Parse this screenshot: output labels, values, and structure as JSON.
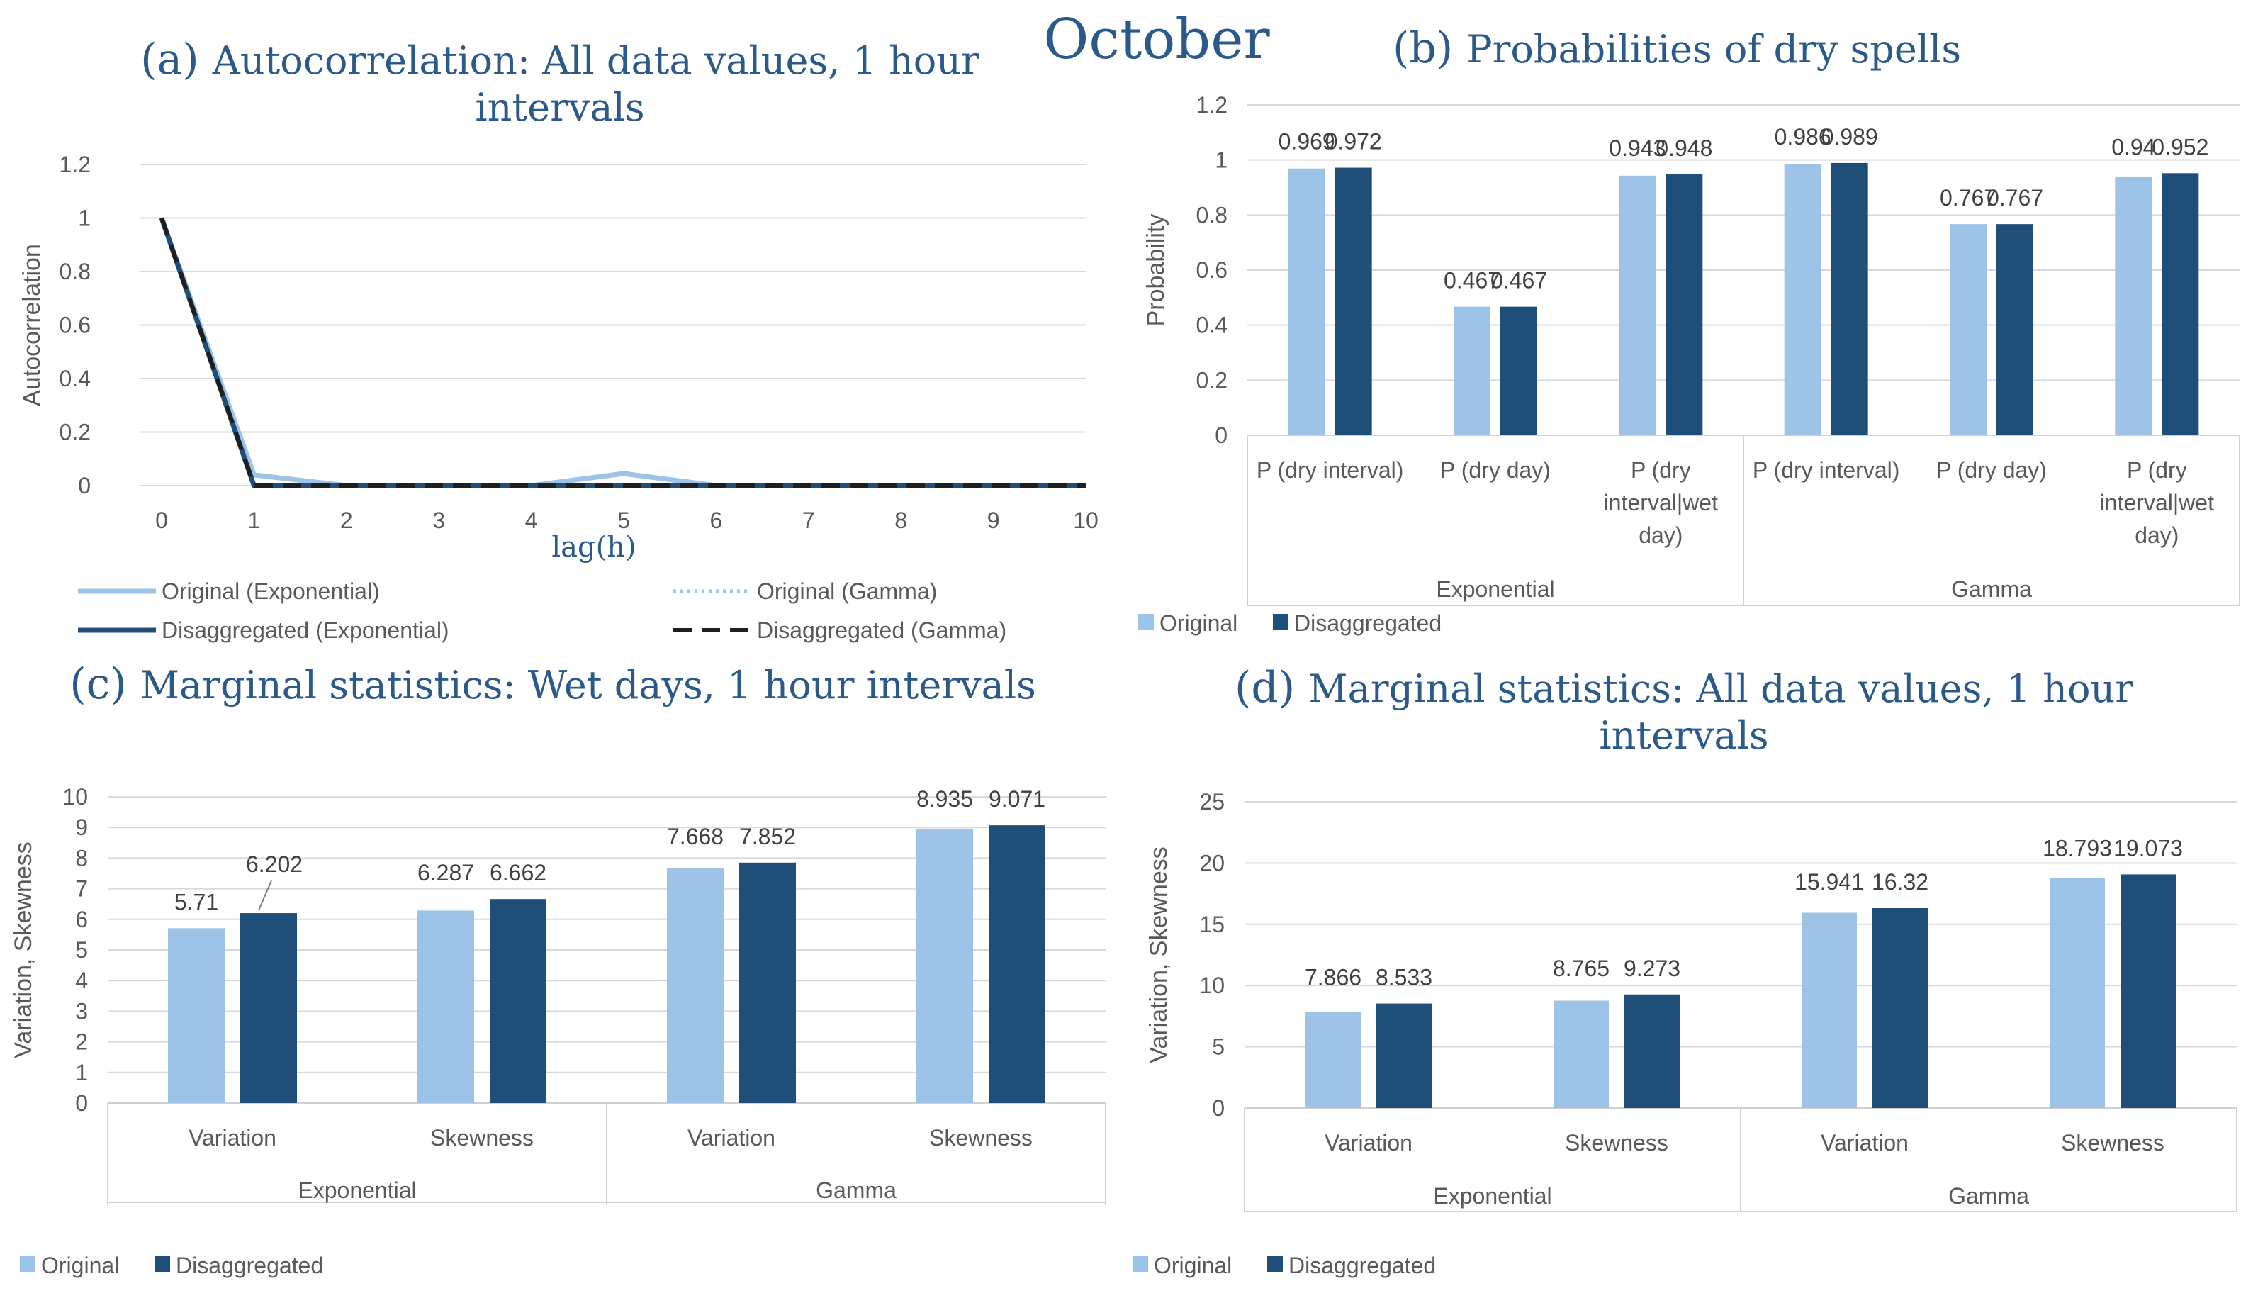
{
  "figure_title": "October",
  "colors": {
    "original": "#9dc3e6",
    "disaggregated": "#1f4e79",
    "title": "#2b5a8a",
    "grid": "#d9d9d9",
    "axis_text": "#595959"
  },
  "chart_data": [
    {
      "id": "a",
      "type": "line",
      "title": "(a) Autocorrelation: All data values, 1 hour intervals",
      "xlabel": "lag(h)",
      "ylabel": "Autocorrelation",
      "x": [
        0,
        1,
        2,
        3,
        4,
        5,
        6,
        7,
        8,
        9,
        10
      ],
      "xticks": [
        "0",
        "1",
        "2",
        "3",
        "4",
        "5",
        "6",
        "7",
        "8",
        "9",
        "10"
      ],
      "ylim": [
        0,
        1.2
      ],
      "yticks": [
        "0",
        "0.2",
        "0.4",
        "0.6",
        "0.8",
        "1",
        "1.2"
      ],
      "grid": true,
      "legend_position": "bottom",
      "series": [
        {
          "name": "Original (Exponential)",
          "style": "solid",
          "color": "#9dc3e6",
          "values": [
            1,
            0.04,
            0.0,
            0.0,
            0.0,
            0.045,
            0.0,
            0.0,
            0.0,
            0.0,
            0.0
          ]
        },
        {
          "name": "Original (Gamma)",
          "style": "dotted",
          "color": "#9dc3e6",
          "values": [
            1,
            0.0,
            0.0,
            0.0,
            0.0,
            0.0,
            0.0,
            0.0,
            0.0,
            0.0,
            0.0
          ]
        },
        {
          "name": "Disaggregated (Exponential)",
          "style": "solid",
          "color": "#1f4e79",
          "values": [
            1,
            0.0,
            0.0,
            0.0,
            0.0,
            0.0,
            0.0,
            0.0,
            0.0,
            0.0,
            0.0
          ]
        },
        {
          "name": "Disaggregated (Gamma)",
          "style": "dashed",
          "color": "#1f1f1f",
          "values": [
            1,
            0.0,
            0.0,
            0.0,
            0.0,
            0.0,
            0.0,
            0.0,
            0.0,
            0.0,
            0.0
          ]
        }
      ]
    },
    {
      "id": "b",
      "type": "bar",
      "title": "(b) Probabilities of dry spells",
      "xlabel": "",
      "ylabel": "Probability",
      "groups": [
        "Exponential",
        "Gamma"
      ],
      "categories": [
        "P (dry interval)",
        "P (dry day)",
        "P (dry interval|wet day)",
        "P (dry interval)",
        "P (dry day)",
        "P (dry interval|wet day)"
      ],
      "category_lines": [
        [
          "P (dry interval)"
        ],
        [
          "P (dry day)"
        ],
        [
          "P (dry",
          "interval|wet",
          "day)"
        ],
        [
          "P (dry interval)"
        ],
        [
          "P (dry day)"
        ],
        [
          "P (dry",
          "interval|wet",
          "day)"
        ]
      ],
      "ylim": [
        0,
        1.2
      ],
      "yticks": [
        "0",
        "0.2",
        "0.4",
        "0.6",
        "0.8",
        "1",
        "1.2"
      ],
      "grid": true,
      "legend_position": "bottom-left",
      "series": [
        {
          "name": "Original",
          "values": [
            0.969,
            0.467,
            0.943,
            0.986,
            0.767,
            0.94
          ]
        },
        {
          "name": "Disaggregated",
          "values": [
            0.972,
            0.467,
            0.948,
            0.989,
            0.767,
            0.952
          ]
        }
      ]
    },
    {
      "id": "c",
      "type": "bar",
      "title": "(c) Marginal statistics: Wet days, 1 hour intervals",
      "xlabel": "",
      "ylabel": "Variation, Skewness",
      "groups": [
        "Exponential",
        "Gamma"
      ],
      "categories": [
        "Variation",
        "Skewness",
        "Variation",
        "Skewness"
      ],
      "ylim": [
        0,
        10
      ],
      "yticks": [
        "0",
        "1",
        "2",
        "3",
        "4",
        "5",
        "6",
        "7",
        "8",
        "9",
        "10"
      ],
      "grid": true,
      "legend_position": "bottom-left",
      "series": [
        {
          "name": "Original",
          "values": [
            5.71,
            6.287,
            7.668,
            8.935
          ]
        },
        {
          "name": "Disaggregated",
          "values": [
            6.202,
            6.662,
            7.852,
            9.071
          ]
        }
      ]
    },
    {
      "id": "d",
      "type": "bar",
      "title": "(d) Marginal statistics: All data values, 1 hour intervals",
      "xlabel": "",
      "ylabel": "Variation, Skewness",
      "groups": [
        "Exponential",
        "Gamma"
      ],
      "categories": [
        "Variation",
        "Skewness",
        "Variation",
        "Skewness"
      ],
      "ylim": [
        0,
        25
      ],
      "yticks": [
        "0",
        "5",
        "10",
        "15",
        "20",
        "25"
      ],
      "grid": true,
      "legend_position": "bottom-left",
      "series": [
        {
          "name": "Original",
          "values": [
            7.866,
            8.765,
            15.941,
            18.793
          ]
        },
        {
          "name": "Disaggregated",
          "values": [
            8.533,
            9.273,
            16.32,
            19.073
          ]
        }
      ]
    }
  ]
}
